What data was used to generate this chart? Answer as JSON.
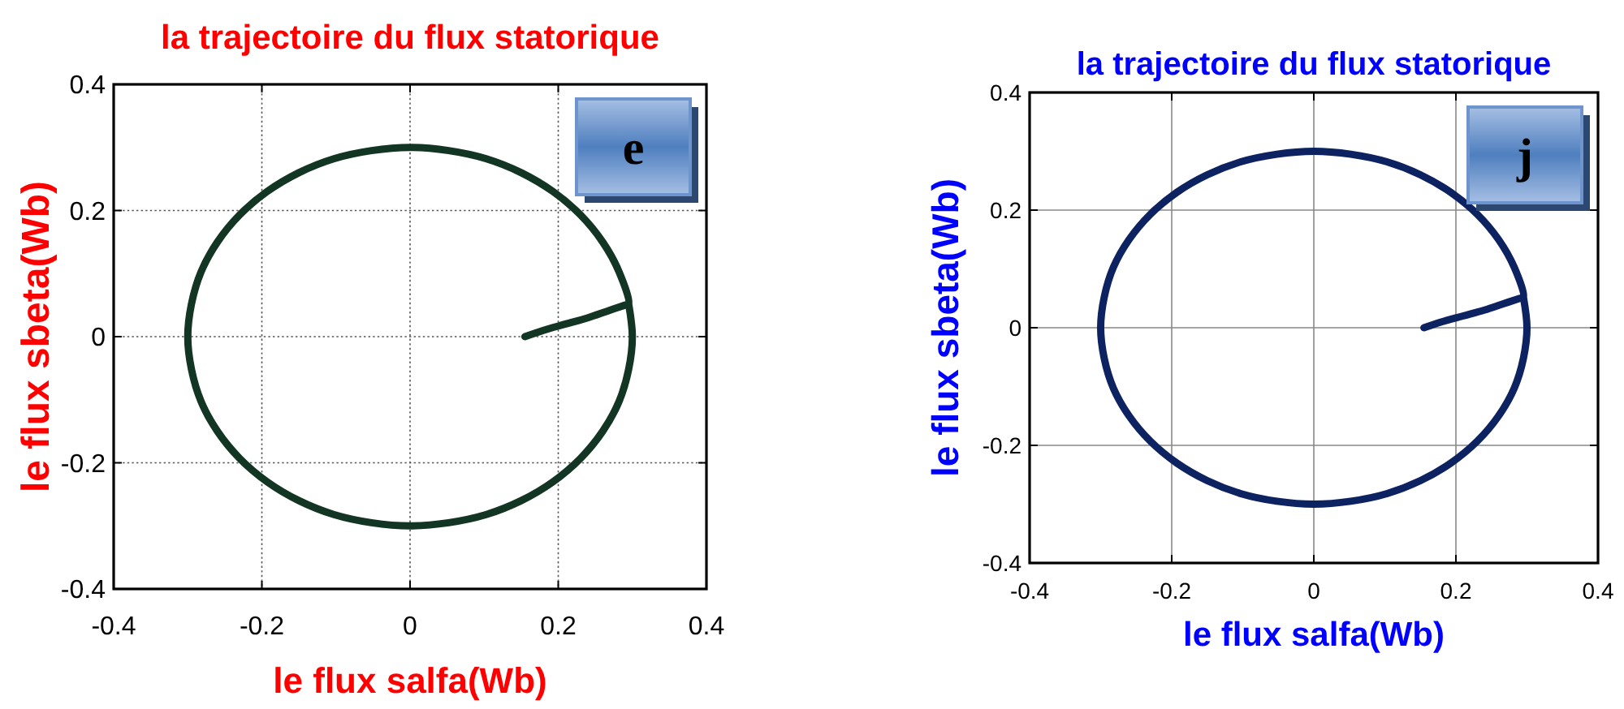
{
  "chart_data": [
    {
      "type": "line",
      "title": "la trajectoire du flux statorique",
      "xlabel": "le flux salfa(Wb)",
      "ylabel": "le flux sbeta(Wb)",
      "xlim": [
        -0.4,
        0.4
      ],
      "ylim": [
        -0.4,
        0.4
      ],
      "xticks": [
        -0.4,
        -0.2,
        0,
        0.2,
        0.4
      ],
      "yticks": [
        -0.4,
        -0.2,
        0,
        0.2,
        0.4
      ],
      "grid": true,
      "annotations": [
        "e"
      ],
      "series": [
        {
          "color": "#133524",
          "x": [
            0.155,
            0.18,
            0.21,
            0.24,
            0.265,
            0.29,
            0.295,
            0.282,
            0.26,
            0.23,
            0.193,
            0.15,
            0.103,
            0.052,
            0,
            -0.052,
            -0.103,
            -0.15,
            -0.193,
            -0.23,
            -0.26,
            -0.282,
            -0.295,
            -0.3,
            -0.295,
            -0.282,
            -0.26,
            -0.23,
            -0.193,
            -0.15,
            -0.103,
            -0.052,
            0,
            0.052,
            0.103,
            0.15,
            0.193,
            0.23,
            0.26,
            0.282,
            0.295,
            0.3,
            0.295
          ],
          "values": [
            0,
            0.01,
            0.02,
            0.03,
            0.04,
            0.05,
            0.052,
            0.103,
            0.15,
            0.193,
            0.23,
            0.26,
            0.282,
            0.295,
            0.3,
            0.295,
            0.282,
            0.26,
            0.23,
            0.193,
            0.15,
            0.103,
            0.052,
            0,
            -0.052,
            -0.103,
            -0.15,
            -0.193,
            -0.23,
            -0.26,
            -0.282,
            -0.295,
            -0.3,
            -0.295,
            -0.282,
            -0.26,
            -0.23,
            -0.193,
            -0.15,
            -0.103,
            -0.052,
            0,
            0.052
          ]
        }
      ]
    },
    {
      "type": "line",
      "title": "la trajectoire du flux statorique",
      "xlabel": "le flux salfa(Wb)",
      "ylabel": "le flux sbeta(Wb)",
      "xlim": [
        -0.4,
        0.4
      ],
      "ylim": [
        -0.4,
        0.4
      ],
      "xticks": [
        -0.4,
        -0.2,
        0,
        0.2,
        0.4
      ],
      "yticks": [
        -0.4,
        -0.2,
        0,
        0.2,
        0.4
      ],
      "grid": true,
      "annotations": [
        "j"
      ],
      "series": [
        {
          "color": "#0d2260",
          "x": [
            0.155,
            0.18,
            0.21,
            0.24,
            0.265,
            0.29,
            0.295,
            0.282,
            0.26,
            0.23,
            0.193,
            0.15,
            0.103,
            0.052,
            0,
            -0.052,
            -0.103,
            -0.15,
            -0.193,
            -0.23,
            -0.26,
            -0.282,
            -0.295,
            -0.3,
            -0.295,
            -0.282,
            -0.26,
            -0.23,
            -0.193,
            -0.15,
            -0.103,
            -0.052,
            0,
            0.052,
            0.103,
            0.15,
            0.193,
            0.23,
            0.26,
            0.282,
            0.295,
            0.3,
            0.295
          ],
          "values": [
            0,
            0.01,
            0.02,
            0.03,
            0.04,
            0.05,
            0.052,
            0.103,
            0.15,
            0.193,
            0.23,
            0.26,
            0.282,
            0.295,
            0.3,
            0.295,
            0.282,
            0.26,
            0.23,
            0.193,
            0.15,
            0.103,
            0.052,
            0,
            -0.052,
            -0.103,
            -0.15,
            -0.193,
            -0.23,
            -0.26,
            -0.282,
            -0.295,
            -0.3,
            -0.295,
            -0.282,
            -0.26,
            -0.23,
            -0.193,
            -0.15,
            -0.103,
            -0.052,
            0,
            0.052
          ]
        }
      ]
    }
  ]
}
